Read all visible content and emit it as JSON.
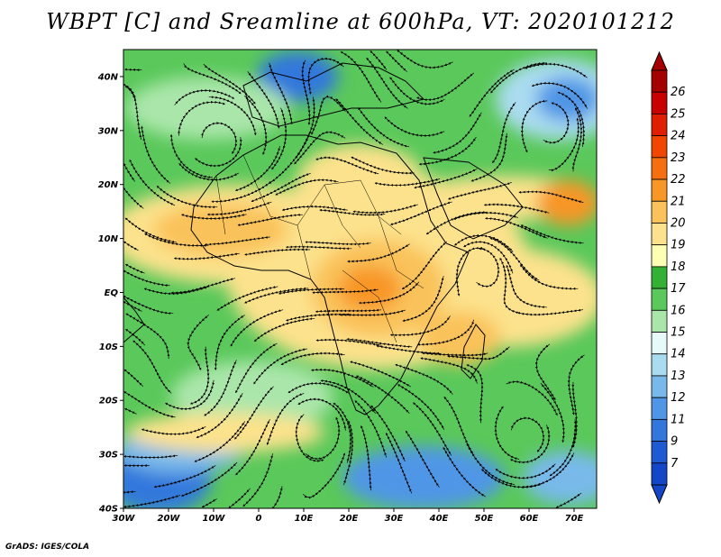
{
  "title": "WBPT [C] and Sreamline at 600hPa, VT: 2020101212",
  "credit": "GrADS: IGES/COLA",
  "map": {
    "lon_range": [
      -30,
      75
    ],
    "lat_range": [
      -40,
      45
    ],
    "lon_ticks": [
      {
        "value": -30,
        "label": "30W"
      },
      {
        "value": -20,
        "label": "20W"
      },
      {
        "value": -10,
        "label": "10W"
      },
      {
        "value": 0,
        "label": "0"
      },
      {
        "value": 10,
        "label": "10E"
      },
      {
        "value": 20,
        "label": "20E"
      },
      {
        "value": 30,
        "label": "30E"
      },
      {
        "value": 40,
        "label": "40E"
      },
      {
        "value": 50,
        "label": "50E"
      },
      {
        "value": 60,
        "label": "60E"
      },
      {
        "value": 70,
        "label": "70E"
      }
    ],
    "lat_ticks": [
      {
        "value": 40,
        "label": "40N"
      },
      {
        "value": 30,
        "label": "30N"
      },
      {
        "value": 20,
        "label": "20N"
      },
      {
        "value": 10,
        "label": "10N"
      },
      {
        "value": 0,
        "label": "EQ"
      },
      {
        "value": -10,
        "label": "10S"
      },
      {
        "value": -20,
        "label": "20S"
      },
      {
        "value": -30,
        "label": "30S"
      },
      {
        "value": -40,
        "label": "40S"
      }
    ]
  },
  "colorbar": {
    "labels": [
      "26",
      "25",
      "24",
      "23",
      "22",
      "21",
      "20",
      "19",
      "18",
      "17",
      "16",
      "15",
      "14",
      "13",
      "12",
      "11",
      "9",
      "7"
    ],
    "colors": [
      "#a50000",
      "#c80000",
      "#e01e00",
      "#f04600",
      "#f56e10",
      "#f89628",
      "#fac25a",
      "#fce28c",
      "#ffffb4",
      "#34b034",
      "#5ac85a",
      "#aae6aa",
      "#e6fafa",
      "#aadcf0",
      "#78b9ea",
      "#5096e6",
      "#3278dc",
      "#1e5ad2",
      "#1446c8"
    ]
  }
}
